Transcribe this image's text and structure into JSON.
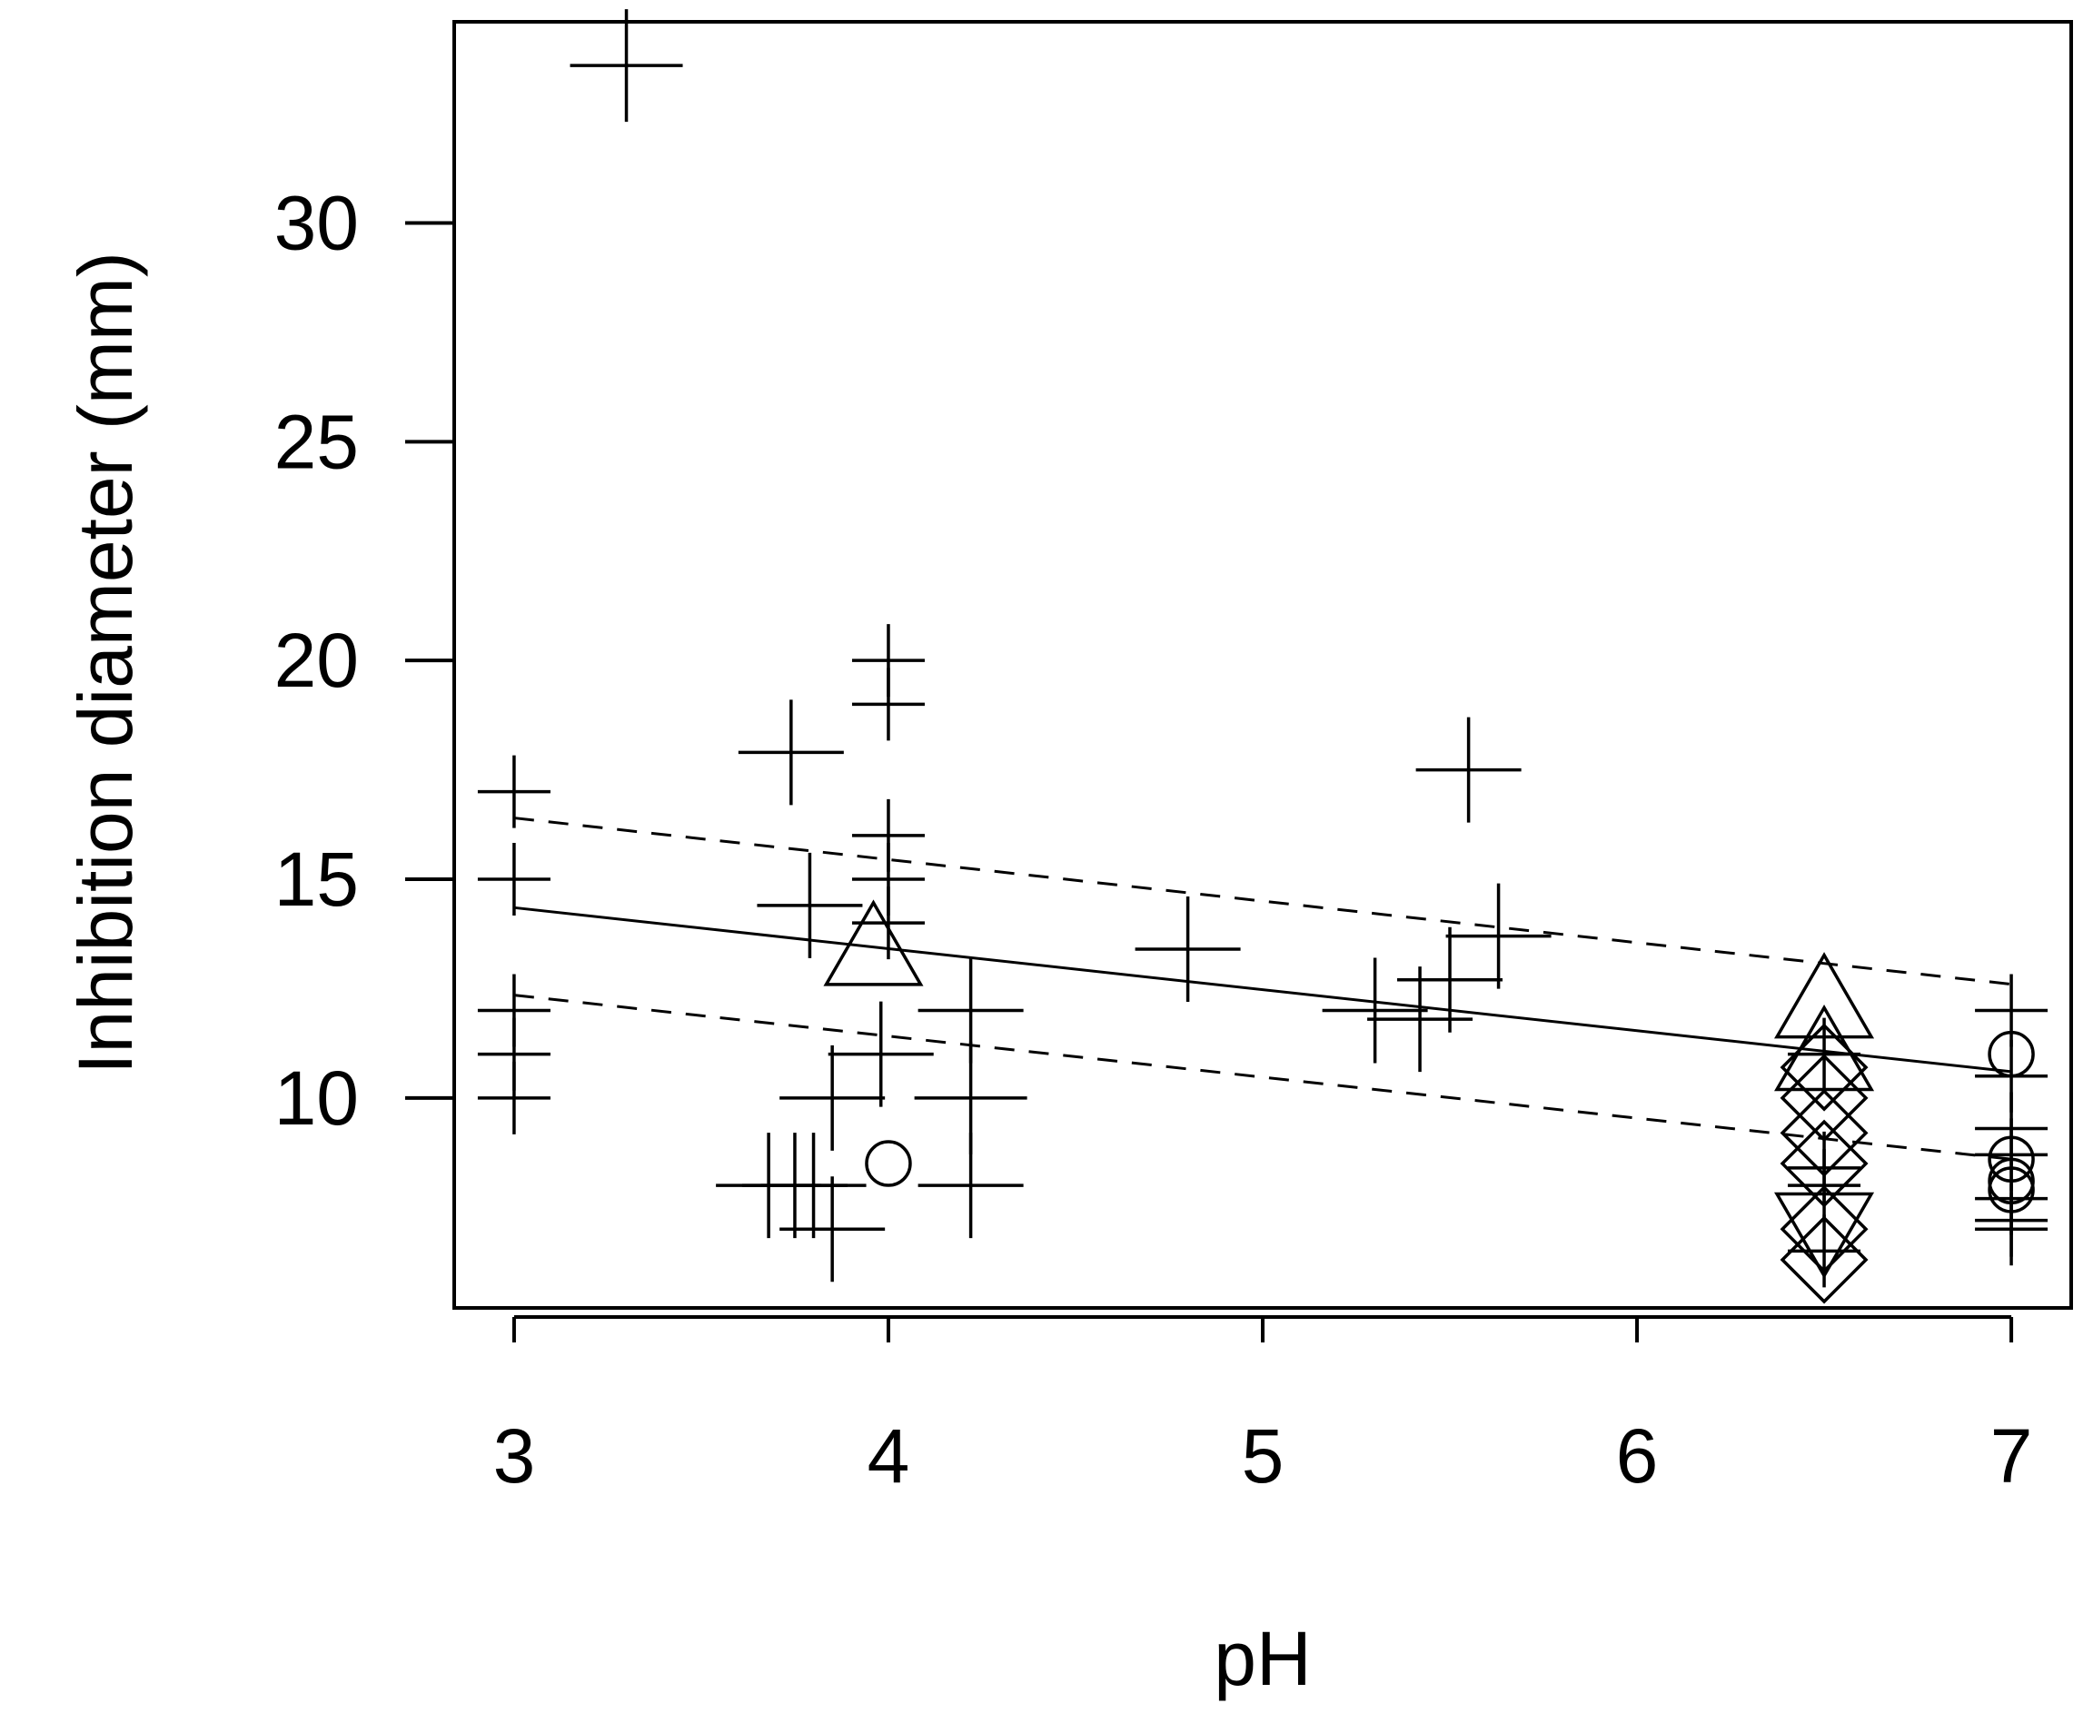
{
  "chart_data": {
    "type": "scatter",
    "title": "",
    "xlabel": "pH",
    "ylabel": "Inhibition diameter (mm)",
    "xlim": [
      2.84,
      7.16
    ],
    "ylim": [
      5.2,
      34.6
    ],
    "xticks": [
      3,
      4,
      5,
      6,
      7
    ],
    "xtick_labels": [
      "3",
      "4",
      "5",
      "6",
      "7"
    ],
    "yticks": [
      10,
      15,
      20,
      25,
      30
    ],
    "ytick_labels": [
      "10",
      "15",
      "20",
      "25",
      "30"
    ],
    "grid": false,
    "legend": "none",
    "series": [
      {
        "marker": "plus",
        "points": [
          {
            "x": 3.3,
            "y": 33.6,
            "size": "large"
          },
          {
            "x": 3.0,
            "y": 17.0,
            "size": "small"
          },
          {
            "x": 3.0,
            "y": 15.0,
            "size": "small"
          },
          {
            "x": 3.0,
            "y": 12.0,
            "size": "small"
          },
          {
            "x": 3.0,
            "y": 11.0,
            "size": "small"
          },
          {
            "x": 3.0,
            "y": 10.0,
            "size": "small"
          },
          {
            "x": 3.74,
            "y": 17.9,
            "size": "medium"
          },
          {
            "x": 3.79,
            "y": 14.4,
            "size": "medium"
          },
          {
            "x": 4.0,
            "y": 20.0,
            "size": "small"
          },
          {
            "x": 4.0,
            "y": 19.0,
            "size": "small"
          },
          {
            "x": 4.0,
            "y": 16.0,
            "size": "small"
          },
          {
            "x": 4.0,
            "y": 15.0,
            "size": "small"
          },
          {
            "x": 4.0,
            "y": 14.0,
            "size": "small"
          },
          {
            "x": 3.98,
            "y": 11.0,
            "size": "medium"
          },
          {
            "x": 3.85,
            "y": 10.0,
            "size": "medium"
          },
          {
            "x": 4.22,
            "y": 12.0,
            "size": "medium"
          },
          {
            "x": 4.22,
            "y": 10.0,
            "size": "large"
          },
          {
            "x": 4.22,
            "y": 8.0,
            "size": "medium"
          },
          {
            "x": 3.68,
            "y": 8.0,
            "size": "medium"
          },
          {
            "x": 3.75,
            "y": 8.0,
            "size": "medium"
          },
          {
            "x": 3.8,
            "y": 8.0,
            "size": "medium"
          },
          {
            "x": 3.85,
            "y": 7.0,
            "size": "medium"
          },
          {
            "x": 4.8,
            "y": 13.4,
            "size": "medium"
          },
          {
            "x": 5.55,
            "y": 17.5,
            "size": "medium"
          },
          {
            "x": 5.63,
            "y": 13.7,
            "size": "medium"
          },
          {
            "x": 5.5,
            "y": 12.7,
            "size": "medium"
          },
          {
            "x": 5.3,
            "y": 12.0,
            "size": "medium"
          },
          {
            "x": 5.42,
            "y": 11.8,
            "size": "medium"
          },
          {
            "x": 6.5,
            "y": 11.0,
            "size": "small"
          },
          {
            "x": 6.5,
            "y": 8.4,
            "size": "small"
          },
          {
            "x": 6.5,
            "y": 8.0,
            "size": "small"
          },
          {
            "x": 6.5,
            "y": 6.5,
            "size": "small"
          },
          {
            "x": 7.0,
            "y": 12.0,
            "size": "small"
          },
          {
            "x": 7.0,
            "y": 10.5,
            "size": "small"
          },
          {
            "x": 7.0,
            "y": 9.3,
            "size": "small"
          },
          {
            "x": 7.0,
            "y": 8.7,
            "size": "small"
          },
          {
            "x": 7.0,
            "y": 7.7,
            "size": "small"
          },
          {
            "x": 7.0,
            "y": 7.2,
            "size": "small"
          },
          {
            "x": 7.0,
            "y": 7.0,
            "size": "small"
          }
        ]
      },
      {
        "marker": "circle",
        "points": [
          {
            "x": 4.0,
            "y": 8.5
          },
          {
            "x": 7.0,
            "y": 11.0
          },
          {
            "x": 7.0,
            "y": 8.6
          },
          {
            "x": 7.0,
            "y": 8.1
          },
          {
            "x": 7.0,
            "y": 7.9
          }
        ]
      },
      {
        "marker": "triangle",
        "points": [
          {
            "x": 3.96,
            "y": 13.3
          },
          {
            "x": 6.5,
            "y": 12.1
          },
          {
            "x": 6.5,
            "y": 10.9
          }
        ]
      },
      {
        "marker": "diamond",
        "points": [
          {
            "x": 6.5,
            "y": 10.7
          },
          {
            "x": 6.5,
            "y": 10.0
          },
          {
            "x": 6.5,
            "y": 9.2
          },
          {
            "x": 6.5,
            "y": 8.5
          },
          {
            "x": 6.5,
            "y": 7.0
          },
          {
            "x": 6.5,
            "y": 6.3
          }
        ]
      },
      {
        "marker": "triangle-down",
        "points": [
          {
            "x": 6.5,
            "y": 7.1
          }
        ]
      }
    ],
    "lines": [
      {
        "style": "solid",
        "x": [
          3.0,
          7.0
        ],
        "y": [
          14.35,
          10.6
        ]
      },
      {
        "style": "dashed",
        "x": [
          3.0,
          7.0
        ],
        "y": [
          16.4,
          12.6
        ]
      },
      {
        "style": "dashed",
        "x": [
          3.0,
          7.0
        ],
        "y": [
          12.35,
          8.6
        ]
      }
    ]
  }
}
